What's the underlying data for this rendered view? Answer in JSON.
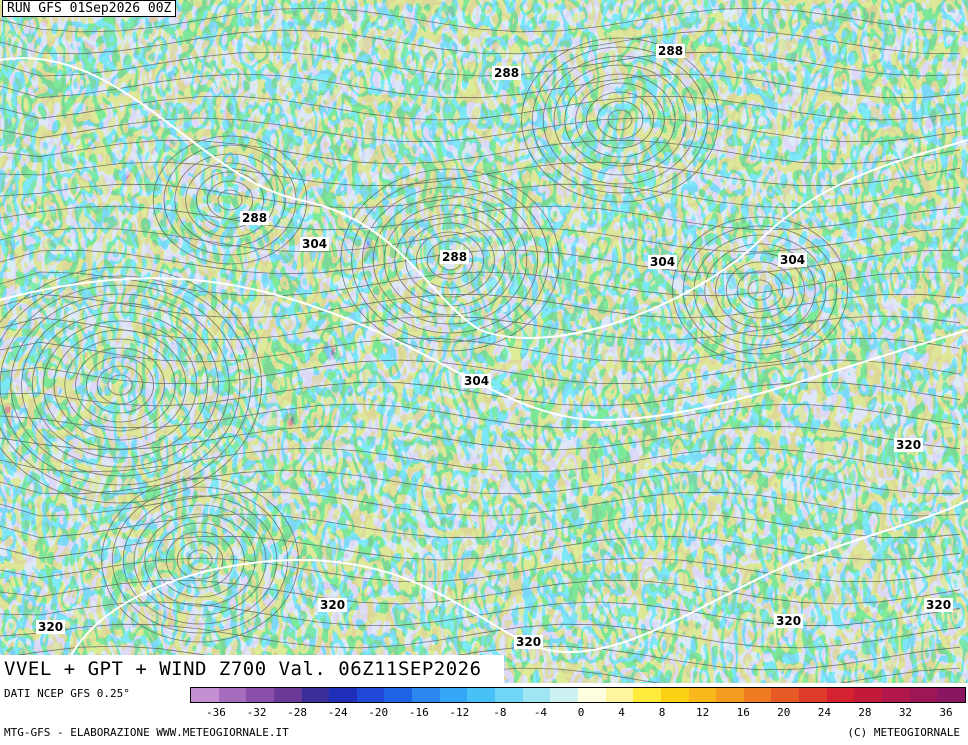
{
  "header": {
    "run_label": "RUN GFS 01Sep2026 00Z"
  },
  "title": {
    "main": "VVEL + GPT + WIND Z700 Val. 06Z11SEP2026"
  },
  "contours": [
    {
      "value": "288"
    },
    {
      "value": "288"
    },
    {
      "value": "288"
    },
    {
      "value": "288"
    },
    {
      "value": "304"
    },
    {
      "value": "304"
    },
    {
      "value": "304"
    },
    {
      "value": "304"
    },
    {
      "value": "320"
    },
    {
      "value": "320"
    },
    {
      "value": "320"
    },
    {
      "value": "320"
    },
    {
      "value": "320"
    }
  ],
  "legend": {
    "source": "DATI NCEP GFS 0.25°",
    "credit_left": "MTG-GFS - ELABORAZIONE WWW.METEOGIORNALE.IT",
    "credit_right": "(C) METEOGIORNALE",
    "ticks": [
      "-36",
      "-32",
      "-28",
      "-24",
      "-20",
      "-16",
      "-12",
      "-8",
      "-4",
      "0",
      "4",
      "8",
      "12",
      "16",
      "20",
      "24",
      "28",
      "32",
      "36"
    ],
    "colors": [
      "#c58fd3",
      "#a66cbd",
      "#8a4fa8",
      "#6b3a98",
      "#3c2f9a",
      "#1f2fb8",
      "#1f49d6",
      "#1e62e6",
      "#2b86f0",
      "#35a6f5",
      "#47c1f7",
      "#6fd6f7",
      "#9fe6f5",
      "#cdf2f2",
      "#ffffe0",
      "#fff59d",
      "#ffeb3b",
      "#fcd116",
      "#f9b81b",
      "#f59b1f",
      "#ee7b22",
      "#e85a25",
      "#e03a2a",
      "#d52230",
      "#c41a3a",
      "#b1174a",
      "#9c1658",
      "#8a1560"
    ]
  }
}
